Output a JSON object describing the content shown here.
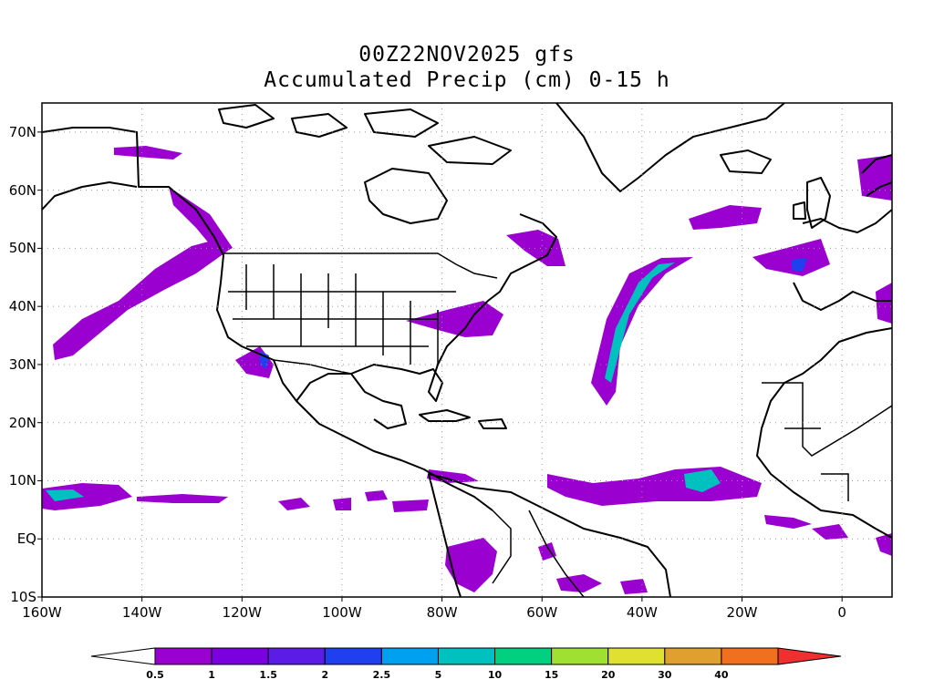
{
  "title_line1": "00Z22NOV2025 gfs",
  "title_line2": "Accumulated Precip (cm) 0-15 h",
  "lat_labels": [
    "70N",
    "60N",
    "50N",
    "40N",
    "30N",
    "20N",
    "10N",
    "EQ",
    "10S"
  ],
  "lat_values": [
    70,
    60,
    50,
    40,
    30,
    20,
    10,
    0,
    -10
  ],
  "lon_labels": [
    "160W",
    "140W",
    "120W",
    "100W",
    "80W",
    "60W",
    "40W",
    "20W",
    "0"
  ],
  "lon_values": [
    -160,
    -140,
    -120,
    -100,
    -80,
    -60,
    -40,
    -20,
    0
  ],
  "map_extent": {
    "lon_min": -160,
    "lon_max": 10,
    "lat_min": -10,
    "lat_max": 75
  },
  "colorbar": {
    "levels": [
      "0.5",
      "1",
      "1.5",
      "2",
      "2.5",
      "5",
      "10",
      "15",
      "20",
      "30",
      "40"
    ],
    "colors": [
      "#ffffff",
      "#9a00d0",
      "#7a00e0",
      "#5b1de6",
      "#2040f0",
      "#00a0f0",
      "#00c0c0",
      "#00d080",
      "#a0e030",
      "#e0e030",
      "#e0a030",
      "#f07020",
      "#f03030"
    ]
  },
  "precip_colors": {
    "light": "#9a00d0",
    "moderate": "#7a00e0",
    "blue": "#2040f0",
    "cyan": "#00b0c8",
    "teal": "#00c0c0"
  }
}
